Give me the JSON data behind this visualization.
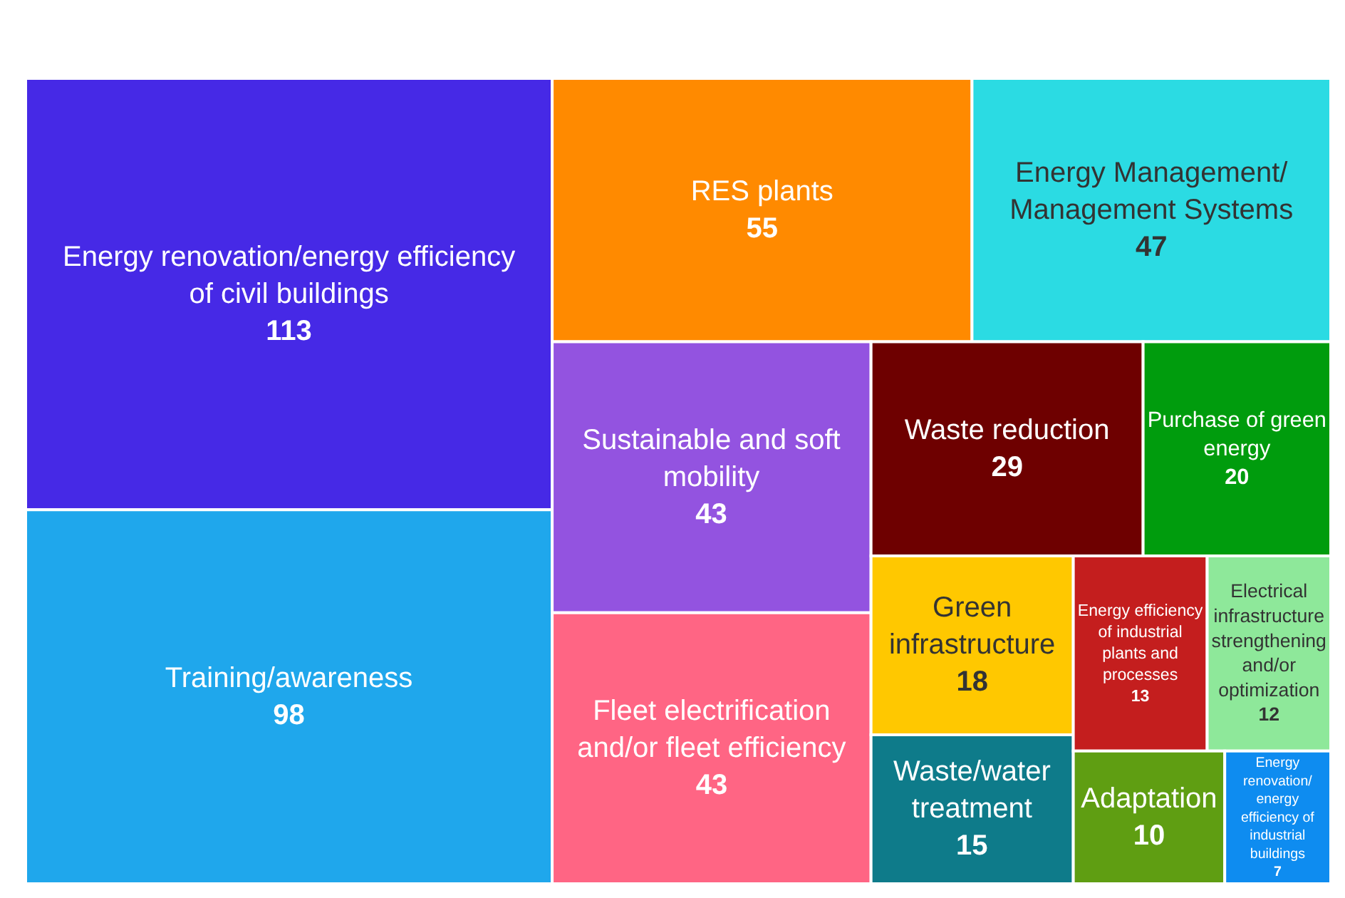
{
  "chart_data": {
    "type": "other",
    "categories": [
      "Energy renovation/energy efficiency of civil buildings",
      "Training/awareness",
      "RES plants",
      "Energy Management/Management Systems",
      "Sustainable and soft mobility",
      "Fleet electrification and/or fleet efficiency",
      "Waste reduction",
      "Purchase of green energy",
      "Green infrastructure",
      "Waste/water treatment",
      "Energy efficiency of industrial plants and processes",
      "Electrical infrastructure strengthening and/or optimization",
      "Adaptation",
      "Energy renovation/energy efficiency of industrial buildings"
    ],
    "values": [
      113,
      98,
      55,
      47,
      43,
      43,
      29,
      20,
      18,
      15,
      13,
      12,
      10,
      7
    ],
    "colors": [
      "#4629e6",
      "#1fa7ec",
      "#ff8a00",
      "#2bdbe3",
      "#9353e0",
      "#ff6584",
      "#6e0000",
      "#009c0d",
      "#ffc800",
      "#0e7b8a",
      "#c41e1e",
      "#8ee89a",
      "#5f9e12",
      "#0e8cf0"
    ],
    "data_labels": true
  }
}
